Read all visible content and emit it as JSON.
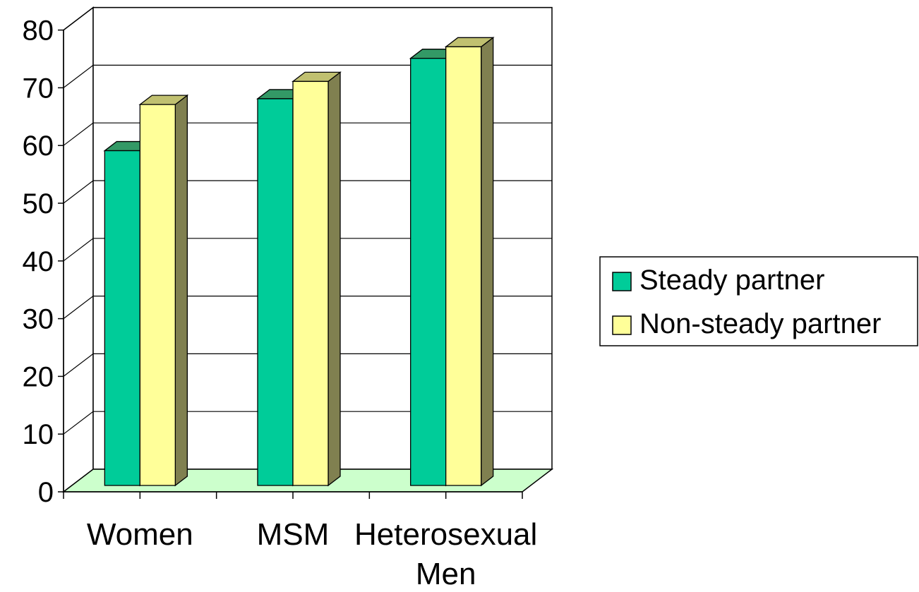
{
  "chart_data": {
    "type": "bar",
    "style": "3d-clustered-column",
    "categories": [
      "Women",
      "MSM",
      "Heterosexual Men"
    ],
    "category_lines": [
      [
        "Women"
      ],
      [
        "MSM"
      ],
      [
        "Heterosexual",
        "Men"
      ]
    ],
    "series": [
      {
        "name": "Steady partner",
        "values": [
          58,
          67,
          74
        ],
        "color": "#00CC99",
        "side_color": "#339966",
        "top_color": "#339966"
      },
      {
        "name": "Non-steady partner",
        "values": [
          66,
          70,
          76
        ],
        "color": "#FFFF99",
        "side_color": "#808050",
        "top_color": "#C0C070"
      }
    ],
    "yticks": [
      "0",
      "10",
      "20",
      "30",
      "40",
      "50",
      "60",
      "70",
      "80"
    ],
    "ylim": [
      0,
      80
    ],
    "ytick_step": 10,
    "grid": true,
    "floor_color": "#CCFFCC",
    "legend_position": "right",
    "title": "",
    "xlabel": "",
    "ylabel": ""
  }
}
